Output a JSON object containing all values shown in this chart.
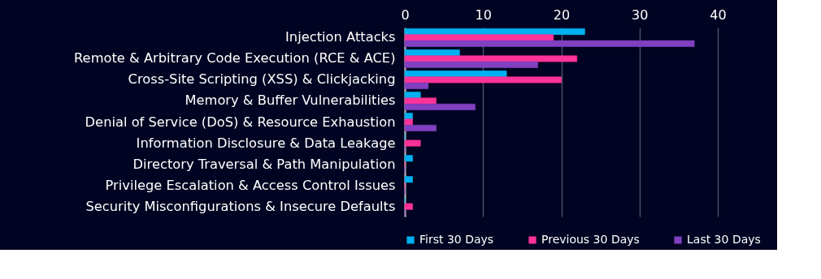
{
  "chart_data": {
    "type": "bar",
    "orientation": "horizontal",
    "categories": [
      "Injection Attacks",
      "Remote & Arbitrary Code Execution (RCE & ACE)",
      "Cross-Site Scripting (XSS) & Clickjacking",
      "Memory & Buffer Vulnerabilities",
      "Denial of Service (DoS) & Resource Exhaustion",
      "Information Disclosure & Data Leakage",
      "Directory Traversal & Path Manipulation",
      "Privilege Escalation & Access Control Issues",
      "Security Misconfigurations & Insecure Defaults"
    ],
    "series": [
      {
        "name": "First 30 Days",
        "color": "#00b0f0",
        "values": [
          23,
          7,
          13,
          2,
          1,
          0,
          1,
          1,
          0
        ]
      },
      {
        "name": "Previous 30 Days",
        "color": "#ff3399",
        "values": [
          19,
          22,
          20,
          4,
          1,
          2,
          0,
          0,
          1
        ]
      },
      {
        "name": "Last 30 Days",
        "color": "#8040c0",
        "values": [
          37,
          17,
          3,
          9,
          4,
          0,
          0,
          0,
          0
        ]
      }
    ],
    "xlim": [
      0,
      40
    ],
    "xticks": [
      0,
      10,
      20,
      30,
      40
    ],
    "grid": "x",
    "legend": "bottom"
  }
}
